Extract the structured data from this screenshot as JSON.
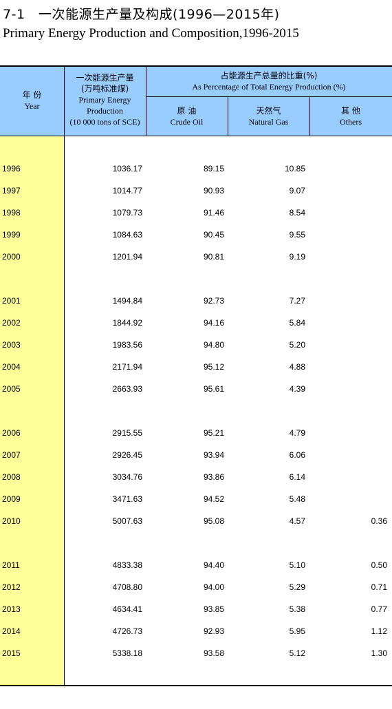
{
  "title": {
    "cn": "7-1　一次能源生产量及构成(1996—2015年)",
    "en": "Primary Energy Production and Composition,1996-2015"
  },
  "header": {
    "year": {
      "cn": "年 份",
      "en": "Year"
    },
    "production": {
      "cn1": "一次能源生产量",
      "cn2": "(万吨标准煤)",
      "en1": "Primary Energy",
      "en2": "Production",
      "en3": "(10 000 tons of SCE)"
    },
    "percentage": {
      "cn": "占能源生产总量的比重(%)",
      "en": "As Percentage of Total Energy Production (%)"
    },
    "crude_oil": {
      "cn": "原 油",
      "en": "Crude Oil"
    },
    "natural_gas": {
      "cn": "天然气",
      "en": "Natural Gas"
    },
    "others": {
      "cn": "其 他",
      "en": "Others"
    }
  },
  "rows": [
    {
      "year": "1996",
      "production": "1036.17",
      "crude_oil": "89.15",
      "natural_gas": "10.85",
      "others": ""
    },
    {
      "year": "1997",
      "production": "1014.77",
      "crude_oil": "90.93",
      "natural_gas": "9.07",
      "others": ""
    },
    {
      "year": "1998",
      "production": "1079.73",
      "crude_oil": "91.46",
      "natural_gas": "8.54",
      "others": ""
    },
    {
      "year": "1999",
      "production": "1084.63",
      "crude_oil": "90.45",
      "natural_gas": "9.55",
      "others": ""
    },
    {
      "year": "2000",
      "production": "1201.94",
      "crude_oil": "90.81",
      "natural_gas": "9.19",
      "others": ""
    },
    {
      "year": "2001",
      "production": "1494.84",
      "crude_oil": "92.73",
      "natural_gas": "7.27",
      "others": ""
    },
    {
      "year": "2002",
      "production": "1844.92",
      "crude_oil": "94.16",
      "natural_gas": "5.84",
      "others": ""
    },
    {
      "year": "2003",
      "production": "1983.56",
      "crude_oil": "94.80",
      "natural_gas": "5.20",
      "others": ""
    },
    {
      "year": "2004",
      "production": "2171.94",
      "crude_oil": "95.12",
      "natural_gas": "4.88",
      "others": ""
    },
    {
      "year": "2005",
      "production": "2663.93",
      "crude_oil": "95.61",
      "natural_gas": "4.39",
      "others": ""
    },
    {
      "year": "2006",
      "production": "2915.55",
      "crude_oil": "95.21",
      "natural_gas": "4.79",
      "others": ""
    },
    {
      "year": "2007",
      "production": "2926.45",
      "crude_oil": "93.94",
      "natural_gas": "6.06",
      "others": ""
    },
    {
      "year": "2008",
      "production": "3034.76",
      "crude_oil": "93.86",
      "natural_gas": "6.14",
      "others": ""
    },
    {
      "year": "2009",
      "production": "3471.63",
      "crude_oil": "94.52",
      "natural_gas": "5.48",
      "others": ""
    },
    {
      "year": "2010",
      "production": "5007.63",
      "crude_oil": "95.08",
      "natural_gas": "4.57",
      "others": "0.36"
    },
    {
      "year": "2011",
      "production": "4833.38",
      "crude_oil": "94.40",
      "natural_gas": "5.10",
      "others": "0.50"
    },
    {
      "year": "2012",
      "production": "4708.80",
      "crude_oil": "94.00",
      "natural_gas": "5.29",
      "others": "0.71"
    },
    {
      "year": "2013",
      "production": "4634.41",
      "crude_oil": "93.85",
      "natural_gas": "5.38",
      "others": "0.77"
    },
    {
      "year": "2014",
      "production": "4726.73",
      "crude_oil": "92.93",
      "natural_gas": "5.95",
      "others": "1.12"
    },
    {
      "year": "2015",
      "production": "5338.18",
      "crude_oil": "93.58",
      "natural_gas": "5.12",
      "others": "1.30"
    }
  ]
}
